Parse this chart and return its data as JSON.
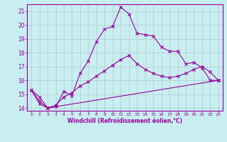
{
  "xlabel": "Windchill (Refroidissement éolien,°C)",
  "background_color": "#c8eef0",
  "line_color": "#990099",
  "grid_color": "#b0c8d0",
  "xlim": [
    -0.5,
    23.5
  ],
  "ylim": [
    13.8,
    21.5
  ],
  "yticks": [
    14,
    15,
    16,
    17,
    18,
    19,
    20,
    21
  ],
  "xticks": [
    0,
    1,
    2,
    3,
    4,
    5,
    6,
    7,
    8,
    9,
    10,
    11,
    12,
    13,
    14,
    15,
    16,
    17,
    18,
    19,
    20,
    21,
    22,
    23
  ],
  "line1_x": [
    0,
    1,
    2,
    3,
    4,
    5,
    6,
    7,
    8,
    9,
    10,
    11,
    12,
    13,
    14,
    15,
    16,
    17,
    18,
    19,
    20,
    21,
    22,
    23
  ],
  "line1_y": [
    15.3,
    14.8,
    14.0,
    14.1,
    15.2,
    14.9,
    16.5,
    17.4,
    18.8,
    19.7,
    19.9,
    21.3,
    20.8,
    19.4,
    19.3,
    19.2,
    18.4,
    18.1,
    18.1,
    17.2,
    17.3,
    16.9,
    16.0,
    16.0
  ],
  "line2_x": [
    0,
    1,
    2,
    3,
    4,
    5,
    6,
    7,
    8,
    9,
    10,
    11,
    12,
    13,
    14,
    15,
    16,
    17,
    18,
    19,
    20,
    21,
    22,
    23
  ],
  "line2_y": [
    15.3,
    14.5,
    14.0,
    14.2,
    14.8,
    15.1,
    15.6,
    15.9,
    16.3,
    16.7,
    17.1,
    17.5,
    17.8,
    17.2,
    16.8,
    16.5,
    16.3,
    16.2,
    16.3,
    16.5,
    16.8,
    17.0,
    16.6,
    16.0
  ],
  "line3_x": [
    0,
    1,
    2,
    23
  ],
  "line3_y": [
    15.3,
    14.3,
    14.0,
    16.0
  ]
}
